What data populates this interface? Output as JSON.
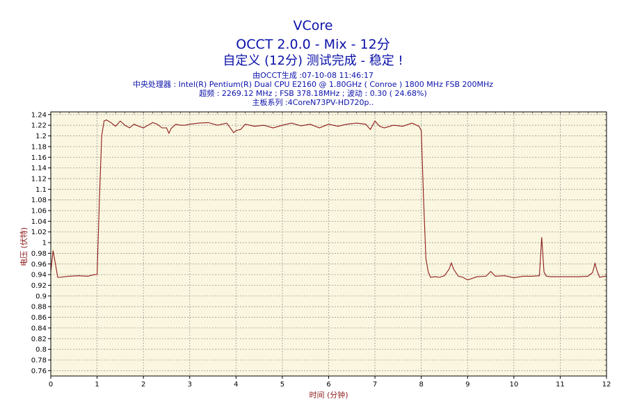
{
  "title_lines": {
    "line1": "VCore",
    "line2": "OCCT 2.0.0 - Mix - 12分",
    "line3": "自定义 (12分) 测试完成 - 稳定 !"
  },
  "info": {
    "generated": "由OCCT生成 :07-10-08 11:46:17",
    "cpu": "中央处理器 : Intel(R) Pentium(R) Dual CPU E2160 @ 1.80GHz ( Conroe ) 1800 MHz FSB 200MHz",
    "overclock": "超频 : 2269.12 MHz ; FSB 378.18MHz ; 波动 : 0.30 ( 24.68%)",
    "board": "主板系列 :4CoreN73PV-HD720p.."
  },
  "colors": {
    "plot_background": "#fbf6df",
    "line": "#8b1a1a",
    "title": "#0a10a8",
    "grid": "#999999"
  },
  "chart_data": {
    "type": "line",
    "title": "VCore",
    "xlabel": "时间 (分钟)",
    "ylabel": "电压 (伏特)",
    "xlim": [
      0,
      12
    ],
    "ylim": [
      0.75,
      1.245
    ],
    "x_ticks": [
      0,
      1,
      2,
      3,
      4,
      5,
      6,
      7,
      8,
      9,
      10,
      11,
      12
    ],
    "y_ticks": [
      0.76,
      0.78,
      0.8,
      0.82,
      0.84,
      0.86,
      0.88,
      0.9,
      0.92,
      0.94,
      0.96,
      0.98,
      1,
      1.02,
      1.04,
      1.06,
      1.08,
      1.1,
      1.12,
      1.14,
      1.16,
      1.18,
      1.2,
      1.22,
      1.24
    ],
    "grid": true,
    "series": [
      {
        "x": [
          0,
          0.05,
          0.1,
          0.15,
          0.2,
          0.4,
          0.6,
          0.8,
          0.95,
          1.0,
          1.05,
          1.1,
          1.15,
          1.2,
          1.3,
          1.4,
          1.5,
          1.6,
          1.7,
          1.8,
          1.9,
          2.0,
          2.1,
          2.2,
          2.3,
          2.4,
          2.5,
          2.55,
          2.6,
          2.7,
          2.8,
          2.9,
          3.0,
          3.2,
          3.4,
          3.6,
          3.8,
          3.9,
          3.95,
          4.0,
          4.1,
          4.2,
          4.4,
          4.6,
          4.8,
          5.0,
          5.2,
          5.4,
          5.6,
          5.8,
          6.0,
          6.2,
          6.4,
          6.6,
          6.8,
          6.9,
          7.0,
          7.1,
          7.2,
          7.4,
          7.6,
          7.8,
          7.95,
          8.0,
          8.05,
          8.1,
          8.15,
          8.2,
          8.3,
          8.4,
          8.5,
          8.6,
          8.65,
          8.7,
          8.8,
          8.9,
          9.0,
          9.2,
          9.4,
          9.5,
          9.6,
          9.8,
          10.0,
          10.2,
          10.4,
          10.55,
          10.6,
          10.65,
          10.7,
          10.8,
          11.0,
          11.2,
          11.4,
          11.6,
          11.7,
          11.75,
          11.8,
          11.85,
          11.9,
          12.0
        ],
        "y": [
          0.945,
          0.985,
          0.96,
          0.935,
          0.935,
          0.937,
          0.938,
          0.937,
          0.94,
          0.94,
          1.08,
          1.2,
          1.228,
          1.23,
          1.225,
          1.218,
          1.228,
          1.22,
          1.215,
          1.222,
          1.218,
          1.215,
          1.22,
          1.225,
          1.222,
          1.215,
          1.215,
          1.205,
          1.214,
          1.222,
          1.22,
          1.22,
          1.222,
          1.224,
          1.225,
          1.22,
          1.224,
          1.212,
          1.206,
          1.21,
          1.212,
          1.222,
          1.218,
          1.22,
          1.215,
          1.22,
          1.224,
          1.219,
          1.222,
          1.215,
          1.222,
          1.218,
          1.222,
          1.224,
          1.222,
          1.212,
          1.228,
          1.218,
          1.215,
          1.22,
          1.218,
          1.224,
          1.218,
          1.21,
          1.08,
          0.97,
          0.945,
          0.935,
          0.936,
          0.935,
          0.938,
          0.95,
          0.962,
          0.95,
          0.937,
          0.935,
          0.93,
          0.936,
          0.937,
          0.946,
          0.937,
          0.938,
          0.934,
          0.937,
          0.937,
          0.938,
          1.01,
          0.945,
          0.937,
          0.936,
          0.936,
          0.936,
          0.936,
          0.937,
          0.944,
          0.961,
          0.946,
          0.935,
          0.936,
          0.937
        ]
      }
    ]
  }
}
